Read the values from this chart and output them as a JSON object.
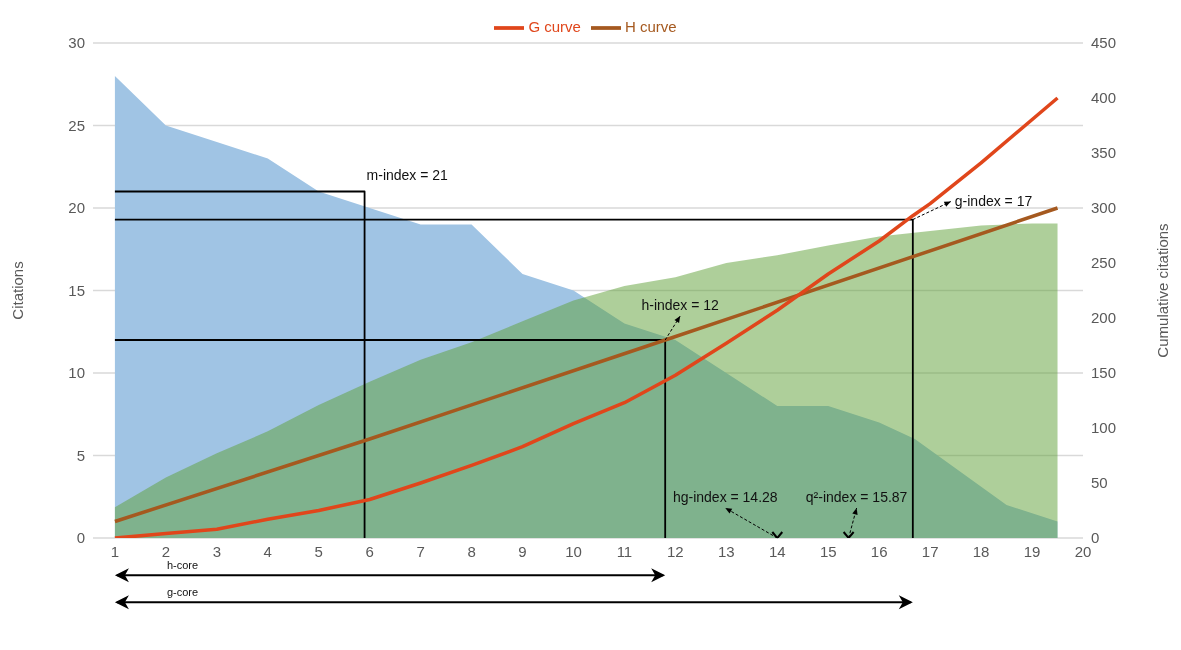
{
  "chart_data": {
    "type": "area",
    "ylabel": "Citations",
    "y2label": "Cumulative citations",
    "xlim": [
      0.57,
      20
    ],
    "xticks": [
      1,
      2,
      3,
      4,
      5,
      6,
      7,
      8,
      9,
      10,
      11,
      12,
      13,
      14,
      15,
      16,
      17,
      18,
      19,
      20
    ],
    "ylim": [
      0,
      30
    ],
    "yticks": [
      0,
      5,
      10,
      15,
      20,
      25,
      30
    ],
    "y2lim": [
      0,
      450
    ],
    "y2ticks": [
      0,
      50,
      100,
      150,
      200,
      250,
      300,
      350,
      400,
      450
    ],
    "grid": "y",
    "legend": "top",
    "series": [
      {
        "color": "#a0c4e4",
        "x": [
          1,
          2,
          3,
          4,
          5,
          6,
          7,
          8,
          9,
          10,
          11,
          12,
          13,
          14,
          15,
          16,
          16.7,
          18.5,
          19.5
        ],
        "values": [
          28,
          25,
          24,
          23,
          21,
          20,
          19,
          19,
          16,
          15,
          13,
          12,
          10,
          8,
          8,
          7,
          6,
          2,
          1
        ]
      },
      {
        "axis": "y2",
        "color": "#aecf9a",
        "x": [
          1,
          2,
          3,
          4,
          5,
          6,
          7,
          8,
          9,
          10,
          11,
          12,
          13,
          14,
          15,
          16,
          17,
          18,
          19,
          19.5
        ],
        "values": [
          28,
          55,
          77,
          97,
          121,
          142,
          162,
          178,
          197,
          216,
          229,
          237,
          250,
          257,
          266,
          274,
          279,
          284,
          286,
          286
        ]
      },
      {
        "type": "line",
        "color": "#000000",
        "x": [
          1,
          5.9,
          5.9
        ],
        "values": [
          21,
          21,
          0
        ]
      },
      {
        "type": "line",
        "color": "#000000",
        "x": [
          1,
          11.8,
          11.8
        ],
        "values": [
          12,
          12,
          0
        ]
      },
      {
        "type": "line",
        "color": "#000000",
        "x": [
          1,
          16.66,
          16.66
        ],
        "values": [
          19.3,
          19.3,
          0
        ]
      },
      {
        "type": "line",
        "name": "H curve",
        "color": "#a5591f",
        "x": [
          1,
          6,
          11.8,
          19.5
        ],
        "values": [
          1,
          6,
          12,
          20
        ]
      },
      {
        "type": "line",
        "name": "G curve",
        "axis": "y2",
        "color": "#e0461b",
        "x": [
          1,
          2,
          3,
          4,
          5,
          6,
          7,
          8,
          9,
          10,
          11,
          12,
          13,
          14,
          15,
          16,
          16.66,
          17,
          18,
          19.5
        ],
        "values": [
          0,
          4,
          8,
          17,
          25,
          35,
          50,
          66,
          83,
          104,
          123,
          148,
          177,
          207,
          240,
          270,
          293,
          304,
          341,
          400
        ]
      },
      {
        "type": "scatter",
        "marker": "cross",
        "color": "#000000",
        "x": [
          14,
          15.4
        ],
        "values": [
          0,
          0
        ]
      }
    ],
    "annotations": [
      {
        "text": "m-index = 21",
        "x": 5.9,
        "y": 21
      },
      {
        "text": "h-index = 12",
        "x": 11.8,
        "y": 12
      },
      {
        "text": "g-index = 17",
        "x": 16.66,
        "y": 19.3
      },
      {
        "text": "hg-index = 14.28",
        "x": 14,
        "y": 0
      },
      {
        "text": "q²-index = 15.87",
        "x": 15.4,
        "y": 0
      },
      "h-core",
      "g-core"
    ]
  }
}
